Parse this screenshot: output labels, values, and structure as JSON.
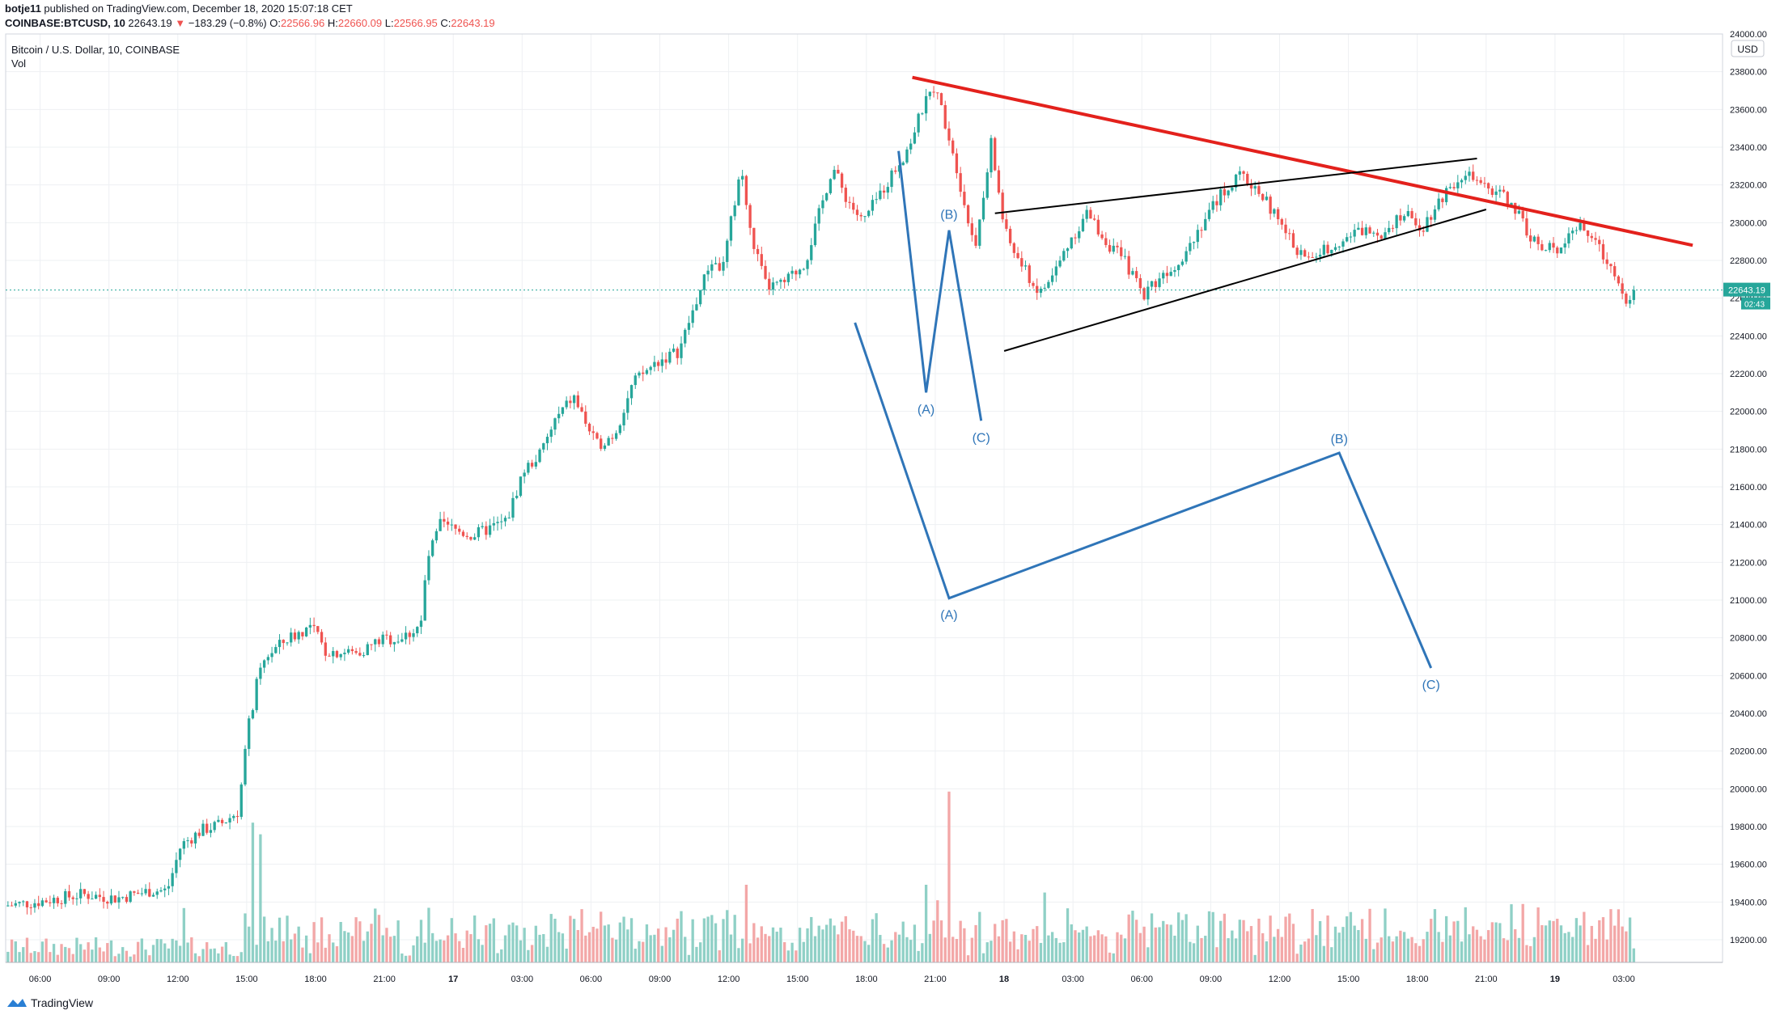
{
  "header": {
    "author": "botje11",
    "published": " published on TradingView.com, December 18, 2020 15:07:18 CET",
    "symbol": "COINBASE:BTCUSD, 10",
    "last": "22643.19",
    "arrow": "▼",
    "change": "−183.29 (−0.8%)",
    "o_label": "O:",
    "o_value": "22566.96",
    "h_label": "H:",
    "h_value": "22660.09",
    "l_label": "L:",
    "l_value": "22566.95",
    "c_label": "C:",
    "c_value": "22643.19"
  },
  "legend": {
    "title": "Bitcoin / U.S. Dollar, 10, COINBASE",
    "vol": "Vol"
  },
  "footer": {
    "brand": "TradingView"
  },
  "colors": {
    "up": "#26a69a",
    "down": "#ef5350",
    "vol_up": "#8fd0c6",
    "vol_down": "#f3a7a7",
    "trend_red": "#e3211c",
    "wave_blue": "#2f75b8",
    "grid": "#eef0f3"
  },
  "chart_data": {
    "type": "candlestick",
    "symbol": "BTCUSD",
    "interval": "10",
    "ylim": [
      19080,
      24000
    ],
    "y_ticks": [
      "24000.00",
      "23800.00",
      "23600.00",
      "23400.00",
      "23200.00",
      "23000.00",
      "22800.00",
      "22600.00",
      "22400.00",
      "22200.00",
      "22000.00",
      "21800.00",
      "21600.00",
      "21400.00",
      "21200.00",
      "21000.00",
      "20800.00",
      "20600.00",
      "20400.00",
      "20200.00",
      "20000.00",
      "19800.00",
      "19600.00",
      "19400.00",
      "19200.00"
    ],
    "y_tick_values": [
      24000,
      23800,
      23600,
      23400,
      23200,
      23000,
      22800,
      22600,
      22400,
      22200,
      22000,
      21800,
      21600,
      21400,
      21200,
      21000,
      20800,
      20600,
      20400,
      20200,
      20000,
      19800,
      19600,
      19400,
      19200
    ],
    "currency": "USD",
    "x_ticks": [
      {
        "label": "06:00",
        "hours": 6
      },
      {
        "label": "09:00",
        "hours": 9
      },
      {
        "label": "12:00",
        "hours": 12
      },
      {
        "label": "15:00",
        "hours": 15
      },
      {
        "label": "18:00",
        "hours": 18
      },
      {
        "label": "21:00",
        "hours": 21
      },
      {
        "label": "17",
        "hours": 24,
        "bold": true
      },
      {
        "label": "03:00",
        "hours": 27
      },
      {
        "label": "06:00",
        "hours": 30
      },
      {
        "label": "09:00",
        "hours": 33
      },
      {
        "label": "12:00",
        "hours": 36
      },
      {
        "label": "15:00",
        "hours": 39
      },
      {
        "label": "18:00",
        "hours": 42
      },
      {
        "label": "21:00",
        "hours": 45
      },
      {
        "label": "18",
        "hours": 48,
        "bold": true
      },
      {
        "label": "03:00",
        "hours": 51
      },
      {
        "label": "06:00",
        "hours": 54
      },
      {
        "label": "09:00",
        "hours": 57
      },
      {
        "label": "12:00",
        "hours": 60
      },
      {
        "label": "15:00",
        "hours": 63
      },
      {
        "label": "18:00",
        "hours": 66
      },
      {
        "label": "21:00",
        "hours": 69
      },
      {
        "label": "19",
        "hours": 72,
        "bold": true
      },
      {
        "label": "03:00",
        "hours": 75
      }
    ],
    "x_range_hours": [
      4.5,
      79.3
    ],
    "last_price": {
      "label": "22643.19",
      "value": 22643.19,
      "countdown": "02:43"
    },
    "price_path": [
      [
        4.6,
        19380
      ],
      [
        6,
        19400
      ],
      [
        8,
        19440
      ],
      [
        9.5,
        19420
      ],
      [
        11,
        19460
      ],
      [
        11.7,
        19460
      ],
      [
        12.3,
        19700
      ],
      [
        13.2,
        19780
      ],
      [
        14,
        19810
      ],
      [
        14.8,
        19880
      ],
      [
        15.2,
        20300
      ],
      [
        15.6,
        20550
      ],
      [
        16,
        20700
      ],
      [
        17,
        20800
      ],
      [
        18,
        20860
      ],
      [
        18.6,
        20730
      ],
      [
        20,
        20720
      ],
      [
        21,
        20790
      ],
      [
        22,
        20800
      ],
      [
        22.8,
        20880
      ],
      [
        23,
        21200
      ],
      [
        23.6,
        21400
      ],
      [
        25,
        21340
      ],
      [
        26.5,
        21420
      ],
      [
        27.2,
        21680
      ],
      [
        28,
        21780
      ],
      [
        28.6,
        21950
      ],
      [
        29.4,
        22080
      ],
      [
        30.4,
        21820
      ],
      [
        31.2,
        21880
      ],
      [
        32,
        22150
      ],
      [
        33,
        22260
      ],
      [
        34,
        22320
      ],
      [
        34.6,
        22530
      ],
      [
        35.4,
        22800
      ],
      [
        35.9,
        22750
      ],
      [
        36.7,
        23300
      ],
      [
        37.1,
        22950
      ],
      [
        37.8,
        22660
      ],
      [
        38.5,
        22670
      ],
      [
        39.5,
        22790
      ],
      [
        40,
        23000
      ],
      [
        40.7,
        23300
      ],
      [
        41.2,
        23150
      ],
      [
        42,
        23000
      ],
      [
        43,
        23200
      ],
      [
        44,
        23400
      ],
      [
        44.6,
        23600
      ],
      [
        45.1,
        23720
      ],
      [
        45.5,
        23580
      ],
      [
        46,
        23350
      ],
      [
        46.7,
        22950
      ],
      [
        47,
        22900
      ],
      [
        47.6,
        23420
      ],
      [
        48.2,
        22950
      ],
      [
        48.8,
        22800
      ],
      [
        49.7,
        22620
      ],
      [
        50.3,
        22720
      ],
      [
        51,
        22900
      ],
      [
        51.8,
        23050
      ],
      [
        52.6,
        22900
      ],
      [
        53.4,
        22800
      ],
      [
        54.2,
        22620
      ],
      [
        55,
        22720
      ],
      [
        55.8,
        22800
      ],
      [
        56.7,
        22980
      ],
      [
        57.6,
        23150
      ],
      [
        58.5,
        23250
      ],
      [
        59.4,
        23150
      ],
      [
        60.4,
        22950
      ],
      [
        61.3,
        22800
      ],
      [
        62,
        22850
      ],
      [
        63,
        22920
      ],
      [
        63.8,
        22960
      ],
      [
        64.6,
        22950
      ],
      [
        65.5,
        23050
      ],
      [
        66.4,
        22980
      ],
      [
        67.3,
        23150
      ],
      [
        68.2,
        23270
      ],
      [
        69,
        23180
      ],
      [
        69.6,
        23170
      ],
      [
        70.3,
        23100
      ],
      [
        71,
        22950
      ],
      [
        71.6,
        22850
      ],
      [
        72.3,
        22870
      ],
      [
        73,
        22980
      ],
      [
        73.6,
        22950
      ],
      [
        74.3,
        22820
      ],
      [
        75,
        22700
      ],
      [
        75.3,
        22560
      ],
      [
        75.5,
        22643.19
      ]
    ],
    "volume_spikes": [
      {
        "hours": 12.3,
        "value": 1.4,
        "up": true
      },
      {
        "hours": 15.2,
        "value": 3.6,
        "up": true
      },
      {
        "hours": 15.6,
        "value": 3.3,
        "up": true
      },
      {
        "hours": 36.7,
        "value": 2.0,
        "up": true
      },
      {
        "hours": 44.6,
        "value": 2.0,
        "up": false
      },
      {
        "hours": 45.1,
        "value": 1.6,
        "up": false
      },
      {
        "hours": 45.6,
        "value": 4.4,
        "up": false
      },
      {
        "hours": 47,
        "value": 1.3,
        "up": true
      },
      {
        "hours": 49.7,
        "value": 1.8,
        "up": false
      }
    ],
    "annotations": {
      "trend_red": [
        [
          44.0,
          23770
        ],
        [
          78.0,
          22880
        ]
      ],
      "wedge_upper": [
        [
          47.6,
          23050
        ],
        [
          68.6,
          23340
        ]
      ],
      "wedge_lower": [
        [
          48.0,
          22320
        ],
        [
          69.0,
          23070
        ]
      ],
      "wave_small": [
        [
          43.4,
          23380
        ],
        [
          44.6,
          22100
        ],
        [
          45.6,
          22960
        ],
        [
          47.0,
          21950
        ]
      ],
      "wave_large": [
        [
          41.5,
          22470
        ],
        [
          45.6,
          21010
        ],
        [
          62.6,
          21780
        ],
        [
          66.6,
          20640
        ]
      ],
      "labels": [
        {
          "text": "(A)",
          "hours": 44.6,
          "value": 22100
        },
        {
          "text": "(B)",
          "hours": 45.6,
          "value": 22960
        },
        {
          "text": "(C)",
          "hours": 47.0,
          "value": 21950
        },
        {
          "text": "(A)",
          "hours": 45.6,
          "value": 21010
        },
        {
          "text": "(B)",
          "hours": 62.6,
          "value": 21780
        },
        {
          "text": "(C)",
          "hours": 66.6,
          "value": 20640
        }
      ]
    }
  }
}
